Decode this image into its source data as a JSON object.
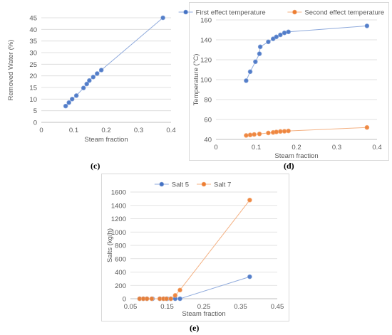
{
  "captions": {
    "c": "(c)",
    "d": "(d)",
    "e": "(e)"
  },
  "colors": {
    "blue_fill": "#4472c4",
    "blue_line": "#8faadc",
    "orange_fill": "#ed7d31",
    "orange_line": "#f4b183",
    "grid": "#d9d9d9",
    "axis": "#bfbfbf"
  },
  "chart_data": [
    {
      "id": "c",
      "type": "line",
      "title": "",
      "xlabel": "Steam fraction",
      "ylabel": "Removed Water (%)",
      "xlim": [
        0,
        0.4
      ],
      "ylim": [
        0,
        45
      ],
      "xticks": [
        "0",
        "0.1",
        "0.2",
        "0.3",
        "0.4"
      ],
      "yticks": [
        "0",
        "5",
        "10",
        "15",
        "20",
        "25",
        "30",
        "35",
        "40",
        "45"
      ],
      "grid": true,
      "legend": "none",
      "series": [
        {
          "name": "",
          "color": "blue",
          "x": [
            0.075,
            0.085,
            0.095,
            0.108,
            0.13,
            0.14,
            0.148,
            0.16,
            0.172,
            0.185,
            0.375
          ],
          "y": [
            7,
            8.5,
            10,
            11.5,
            14.8,
            16.5,
            18,
            19.5,
            21,
            22.5,
            45
          ]
        }
      ]
    },
    {
      "id": "d",
      "type": "line",
      "title": "",
      "xlabel": "Steam fraction",
      "ylabel": "Temperature (°C)",
      "xlim": [
        0,
        0.4
      ],
      "ylim": [
        40,
        160
      ],
      "xticks": [
        "0",
        "0.1",
        "0.2",
        "0.3",
        "0.4"
      ],
      "yticks": [
        "40",
        "60",
        "80",
        "100",
        "120",
        "140",
        "160"
      ],
      "grid": true,
      "legend": "top",
      "series": [
        {
          "name": "First effect temperature",
          "color": "blue",
          "x": [
            0.075,
            0.085,
            0.098,
            0.108,
            0.11,
            0.13,
            0.142,
            0.15,
            0.16,
            0.17,
            0.18,
            0.375
          ],
          "y": [
            99,
            108,
            118,
            126,
            133,
            138,
            141,
            143,
            145,
            147,
            148,
            154
          ]
        },
        {
          "name": "Second effect temperature",
          "color": "orange",
          "x": [
            0.075,
            0.085,
            0.095,
            0.108,
            0.13,
            0.142,
            0.15,
            0.16,
            0.17,
            0.18,
            0.375
          ],
          "y": [
            44,
            44.5,
            45,
            45.5,
            46.5,
            47,
            47.5,
            48,
            48.2,
            48.5,
            52
          ]
        }
      ]
    },
    {
      "id": "e",
      "type": "line",
      "title": "",
      "xlabel": "Steam fraction",
      "ylabel": "Salts (kg/h)",
      "xlim": [
        0.05,
        0.45
      ],
      "ylim": [
        0,
        1600
      ],
      "xticks": [
        "0.05",
        "0.15",
        "0.25",
        "0.35",
        "0.45"
      ],
      "yticks": [
        "0",
        "200",
        "400",
        "600",
        "800",
        "1000",
        "1200",
        "1400",
        "1600"
      ],
      "grid": true,
      "legend": "top",
      "series": [
        {
          "name": "Salt 5",
          "color": "blue",
          "x": [
            0.075,
            0.085,
            0.095,
            0.11,
            0.13,
            0.14,
            0.15,
            0.16,
            0.172,
            0.185,
            0.375
          ],
          "y": [
            0,
            0,
            0,
            0,
            0,
            0,
            0,
            0,
            0,
            0,
            330
          ]
        },
        {
          "name": "Salt 7",
          "color": "orange",
          "x": [
            0.075,
            0.085,
            0.095,
            0.108,
            0.13,
            0.14,
            0.148,
            0.16,
            0.172,
            0.185,
            0.375
          ],
          "y": [
            0,
            0,
            0,
            0,
            0,
            0,
            0,
            0,
            50,
            130,
            1480
          ]
        }
      ]
    }
  ]
}
